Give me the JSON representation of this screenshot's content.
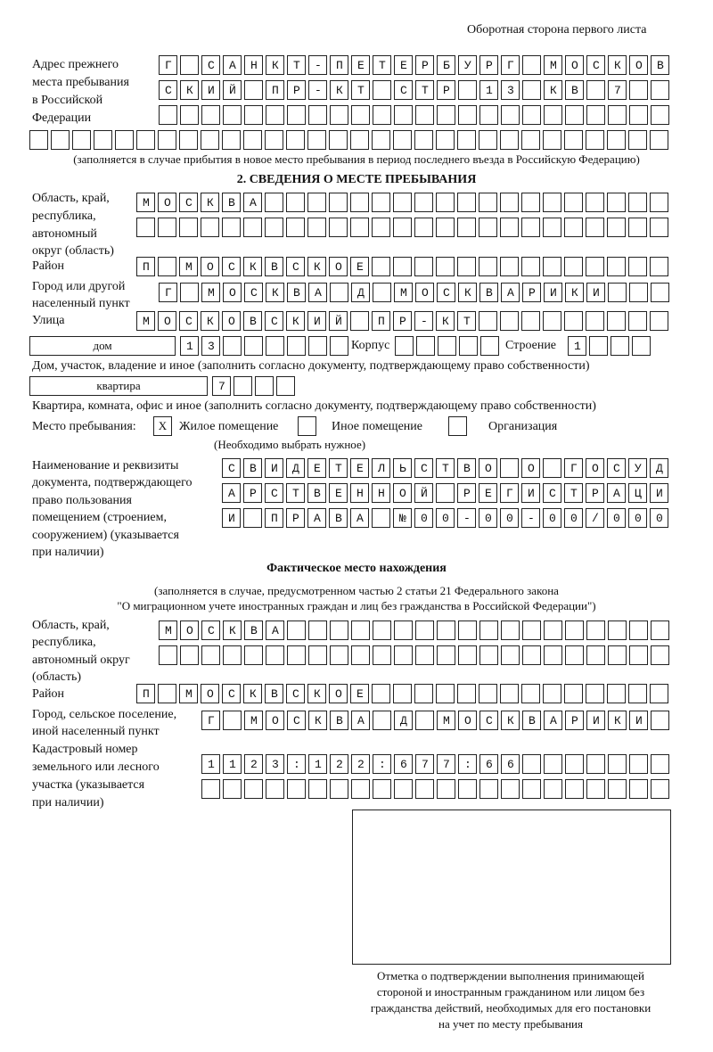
{
  "header": "Оборотная сторона первого листа",
  "prev_address": {
    "label_lines": [
      "Адрес прежнего",
      "места пребывания",
      "в Российской",
      "Федерации"
    ],
    "rows": [
      "Г САНКТ-ПЕТЕРБУРГ МОСКОВ",
      "СКИЙ ПР-КТ СТР 13 КВ 7",
      "",
      ""
    ],
    "note": "(заполняется в случае прибытия в новое место пребывания в период последнего въезда в Российскую Федерацию)"
  },
  "section2": {
    "title": "2. СВЕДЕНИЯ О МЕСТЕ ПРЕБЫВАНИЯ",
    "region_label": [
      "Область, край,",
      "республика,",
      "автономный",
      "округ (область)"
    ],
    "region_rows": [
      "МОСКВА",
      ""
    ],
    "district_label": "Район",
    "district": "П МОСКВСКОЕ",
    "city_label": [
      "Город или другой",
      "населенный пункт"
    ],
    "city": "Г МОСКВА Д МОСКВАРИКИ",
    "street_label": "Улица",
    "street": "МОСКОВСКИЙ ПР-КТ",
    "house_type": "дом",
    "house_number": "13",
    "korpus_label": "Корпус",
    "korpus": "",
    "building_label": "Строение",
    "building": "1",
    "house_note": "Дом, участок, владение и иное (заполнить согласно документу, подтверждающему право собственности)",
    "apt_type": "квартира",
    "apt_number": "7",
    "apt_note": "Квартира, комната, офис и иное (заполнить согласно документу, подтверждающему право собственности)",
    "place_label": "Место пребывания:",
    "place_options": [
      {
        "label": "Жилое помещение",
        "mark": "X"
      },
      {
        "label": "Иное помещение",
        "mark": ""
      },
      {
        "label": "Организация",
        "mark": ""
      }
    ],
    "place_note": "(Необходимо выбрать нужное)",
    "doc_label": [
      "Наименование и реквизиты",
      "документа, подтверждающего",
      "право пользования",
      "помещением (строением,",
      "сооружением) (указывается",
      "при наличии)"
    ],
    "doc_rows": [
      "СВИДЕТЕЛЬСТВО О ГОСУД",
      "АРСТВЕННОЙ РЕГИСТРАЦИ",
      "И ПРАВА №00-00-00/000"
    ]
  },
  "actual": {
    "title": "Фактическое место нахождения",
    "note": [
      "(заполняется в случае, предусмотренном частью 2 статьи 21 Федерального закона",
      "\"О миграционном учете иностранных граждан и лиц без гражданства в Российской Федерации\")"
    ],
    "region_label": [
      "Область, край,",
      "республика,",
      "автономный округ",
      "(область)"
    ],
    "region_rows": [
      "МОСКВА",
      ""
    ],
    "district_label": "Район",
    "district": "П МОСКВСКОЕ",
    "city_label": [
      "Город, сельское поселение,",
      "иной населенный пункт"
    ],
    "city": "Г МОСКВА Д МОСКВАРИКИ",
    "cadastral_label": [
      "Кадастровый номер",
      "земельного или лесного",
      "участка (указывается",
      "при наличии)"
    ],
    "cadastral_rows": [
      "1123:122:677:66",
      ""
    ]
  },
  "confirmation_caption": [
    "Отметка о подтверждении выполнения принимающей",
    "стороной и иностранным гражданином или лицом без",
    "гражданства действий, необходимых для его постановки",
    "на учет по месту пребывания"
  ]
}
